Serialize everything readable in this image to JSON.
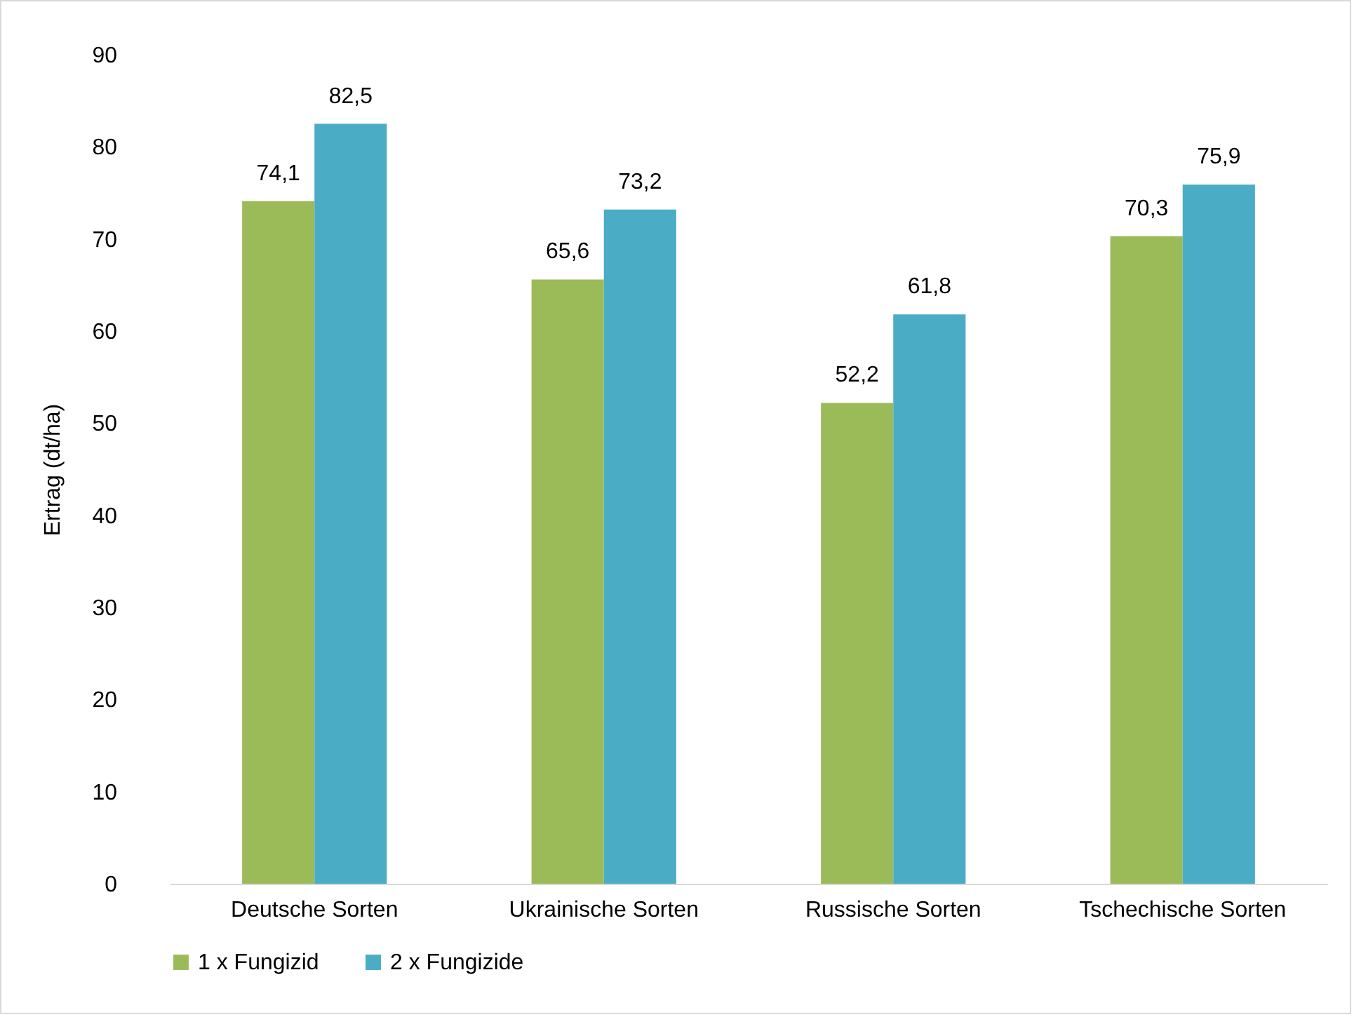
{
  "chart_data": {
    "type": "bar",
    "ylabel": "Ertrag (dt/ha)",
    "categories": [
      "Deutsche Sorten",
      "Ukrainische Sorten",
      "Russische Sorten",
      "Tschechische Sorten"
    ],
    "series": [
      {
        "name": "1 x Fungizid",
        "color": "#9bbb59",
        "values": [
          74.1,
          65.6,
          52.2,
          70.3
        ],
        "value_labels": [
          "74,1",
          "65,6",
          "52,2",
          "70,3"
        ]
      },
      {
        "name": "2 x Fungizide",
        "color": "#4bacc6",
        "values": [
          82.5,
          73.2,
          61.8,
          75.9
        ],
        "value_labels": [
          "82,5",
          "73,2",
          "61,8",
          "75,9"
        ]
      }
    ],
    "ylim": [
      0,
      90
    ],
    "yticks": [
      0,
      10,
      20,
      30,
      40,
      50,
      60,
      70,
      80,
      90
    ],
    "grid": false,
    "legend": "bottom"
  }
}
